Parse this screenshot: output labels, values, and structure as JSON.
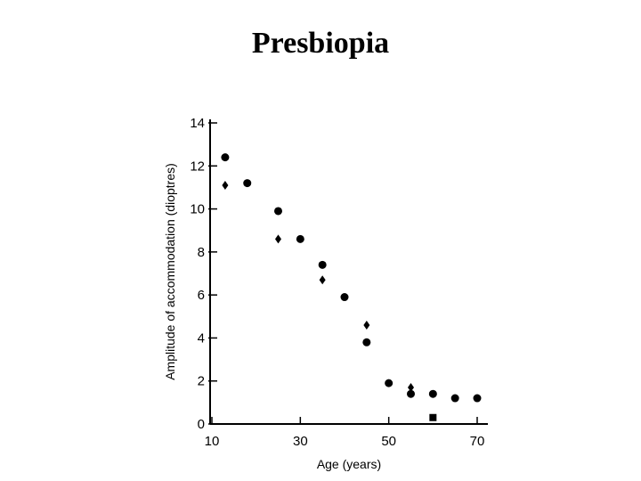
{
  "slide": {
    "title": "Presbiopia"
  },
  "chart_data": {
    "type": "scatter",
    "title": "",
    "xlabel": "Age (years)",
    "ylabel": "Amplitude of accommodation (dioptres)",
    "xlim": [
      10,
      70
    ],
    "ylim": [
      0,
      14
    ],
    "x_ticks": [
      10,
      30,
      50,
      70
    ],
    "x_tick_labels": [
      "10",
      "30",
      "50",
      "70"
    ],
    "y_ticks": [
      0,
      2,
      4,
      6,
      8,
      10,
      12,
      14
    ],
    "y_tick_labels": [
      "0",
      "2",
      "4",
      "6",
      "8",
      "10",
      "12",
      "14"
    ],
    "grid": false,
    "legend": "none",
    "series": [
      {
        "marker": "circle",
        "color": "#000000",
        "points": [
          [
            13,
            12.4
          ],
          [
            18,
            11.2
          ],
          [
            25,
            9.9
          ],
          [
            30,
            8.6
          ],
          [
            35,
            7.4
          ],
          [
            40,
            5.9
          ],
          [
            45,
            3.8
          ],
          [
            50,
            1.9
          ],
          [
            55,
            1.4
          ],
          [
            60,
            1.4
          ],
          [
            65,
            1.2
          ],
          [
            70,
            1.2
          ]
        ]
      },
      {
        "marker": "diamond",
        "color": "#000000",
        "points": [
          [
            13,
            11.1
          ],
          [
            25,
            8.6
          ],
          [
            35,
            6.7
          ],
          [
            45,
            4.6
          ],
          [
            55,
            1.7
          ]
        ]
      },
      {
        "marker": "square",
        "color": "#000000",
        "points": [
          [
            60,
            0.3
          ]
        ]
      }
    ]
  }
}
